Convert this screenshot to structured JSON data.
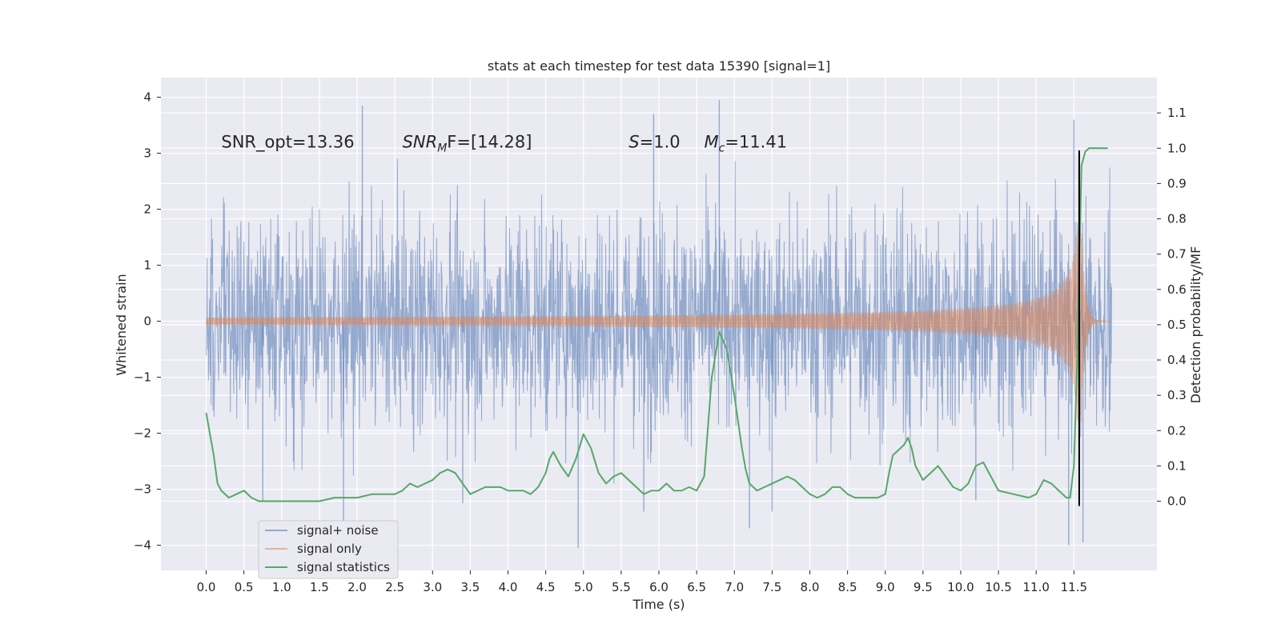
{
  "chart_data": {
    "type": "line",
    "title": "stats at each timestep for test data 15390 [signal=1]",
    "xlabel": "Time (s)",
    "ylabel_left": "Whitened strain",
    "ylabel_right": "Detection probability/MF",
    "xlim": [
      -0.6,
      12.6
    ],
    "ylim_left": [
      -4.45,
      4.35
    ],
    "ylim_right": [
      -0.196,
      1.2
    ],
    "x_ticks": [
      "0.0",
      "0.5",
      "1.0",
      "1.5",
      "2.0",
      "2.5",
      "3.0",
      "3.5",
      "4.0",
      "4.5",
      "5.0",
      "5.5",
      "6.0",
      "6.5",
      "7.0",
      "7.5",
      "8.0",
      "8.5",
      "9.0",
      "9.5",
      "10.0",
      "10.5",
      "11.0",
      "11.5"
    ],
    "y_ticks_left": [
      "−4",
      "−3",
      "−2",
      "−1",
      "0",
      "1",
      "2",
      "3",
      "4"
    ],
    "y_ticks_right": [
      "0.0",
      "0.1",
      "0.2",
      "0.3",
      "0.4",
      "0.5",
      "0.6",
      "0.7",
      "0.8",
      "0.9",
      "1.0",
      "1.1"
    ],
    "grid": true,
    "legend_position": "lower-left",
    "annotations": [
      {
        "label": "SNR_opt=13.36",
        "x": 0.2,
        "y": 3.1
      },
      {
        "label": "SNR",
        "sub": "M",
        "rest": "F=[14.28]",
        "x": 2.6,
        "y": 3.1
      },
      {
        "label": "S",
        "rest": "=1.0",
        "x": 5.6,
        "y": 3.1
      },
      {
        "label": "M",
        "sub": "c",
        "rest": "=11.41",
        "x": 6.6,
        "y": 3.1
      }
    ],
    "vertical_line": {
      "x": 11.57
    },
    "series": [
      {
        "name": "signal+ noise",
        "axis": "left",
        "color": "#4c72b0",
        "x_range": [
          0.0,
          12.0
        ],
        "envelope_low": -2.0,
        "envelope_high": 2.0,
        "spikes": [
          {
            "x": 2.07,
            "y": 3.85
          },
          {
            "x": 6.8,
            "y": 3.95
          },
          {
            "x": 5.93,
            "y": 3.7
          },
          {
            "x": 11.5,
            "y": 3.6
          },
          {
            "x": 4.93,
            "y": -4.05
          },
          {
            "x": 11.43,
            "y": -4.0
          },
          {
            "x": 1.82,
            "y": -3.6
          },
          {
            "x": 7.2,
            "y": -3.7
          },
          {
            "x": 11.62,
            "y": -3.95
          },
          {
            "x": 0.75,
            "y": -3.2
          },
          {
            "x": 5.8,
            "y": -3.4
          },
          {
            "x": 7.5,
            "y": -3.4
          },
          {
            "x": 3.4,
            "y": -3.25
          },
          {
            "x": 10.2,
            "y": -3.2
          }
        ]
      },
      {
        "name": "signal only",
        "axis": "left",
        "color": "#dd8452",
        "x_range": [
          0.0,
          12.0
        ],
        "peak_time": 11.6,
        "peak_amplitude": 1.8
      },
      {
        "name": "signal statistics",
        "axis": "right",
        "color": "#55a868",
        "x": [
          0.0,
          0.1,
          0.15,
          0.2,
          0.3,
          0.4,
          0.5,
          0.6,
          0.7,
          1.0,
          1.2,
          1.5,
          1.7,
          2.0,
          2.2,
          2.5,
          2.6,
          2.7,
          2.8,
          3.0,
          3.1,
          3.2,
          3.3,
          3.4,
          3.5,
          3.6,
          3.7,
          3.9,
          4.0,
          4.2,
          4.3,
          4.4,
          4.5,
          4.55,
          4.6,
          4.7,
          4.8,
          4.9,
          5.0,
          5.1,
          5.2,
          5.3,
          5.4,
          5.5,
          5.6,
          5.7,
          5.8,
          5.9,
          6.0,
          6.1,
          6.2,
          6.3,
          6.4,
          6.5,
          6.6,
          6.7,
          6.8,
          6.9,
          7.0,
          7.1,
          7.15,
          7.2,
          7.3,
          7.4,
          7.5,
          7.6,
          7.7,
          7.8,
          7.9,
          8.0,
          8.1,
          8.2,
          8.3,
          8.4,
          8.5,
          8.6,
          8.7,
          8.8,
          8.9,
          9.0,
          9.05,
          9.1,
          9.15,
          9.2,
          9.25,
          9.3,
          9.35,
          9.4,
          9.5,
          9.6,
          9.7,
          9.8,
          9.9,
          10.0,
          10.1,
          10.2,
          10.3,
          10.5,
          10.7,
          10.9,
          11.0,
          11.1,
          11.2,
          11.3,
          11.4,
          11.45,
          11.5,
          11.55,
          11.6,
          11.65,
          11.7,
          11.8,
          11.9,
          11.95
        ],
        "y": [
          0.25,
          0.13,
          0.05,
          0.03,
          0.01,
          0.02,
          0.03,
          0.01,
          0.0,
          0.0,
          0.0,
          0.0,
          0.01,
          0.01,
          0.02,
          0.02,
          0.03,
          0.05,
          0.04,
          0.06,
          0.08,
          0.09,
          0.08,
          0.05,
          0.02,
          0.03,
          0.04,
          0.04,
          0.03,
          0.03,
          0.02,
          0.04,
          0.08,
          0.12,
          0.14,
          0.1,
          0.07,
          0.12,
          0.19,
          0.15,
          0.08,
          0.05,
          0.07,
          0.08,
          0.06,
          0.04,
          0.02,
          0.03,
          0.03,
          0.05,
          0.03,
          0.03,
          0.04,
          0.03,
          0.07,
          0.35,
          0.48,
          0.43,
          0.3,
          0.15,
          0.09,
          0.05,
          0.03,
          0.04,
          0.05,
          0.06,
          0.07,
          0.06,
          0.04,
          0.02,
          0.01,
          0.02,
          0.04,
          0.04,
          0.02,
          0.01,
          0.01,
          0.01,
          0.01,
          0.02,
          0.08,
          0.13,
          0.14,
          0.15,
          0.16,
          0.18,
          0.15,
          0.1,
          0.06,
          0.08,
          0.1,
          0.07,
          0.04,
          0.03,
          0.05,
          0.1,
          0.11,
          0.03,
          0.02,
          0.01,
          0.02,
          0.06,
          0.05,
          0.03,
          0.01,
          0.01,
          0.1,
          0.45,
          0.95,
          0.99,
          1.0,
          1.0,
          1.0,
          1.0
        ]
      }
    ]
  }
}
